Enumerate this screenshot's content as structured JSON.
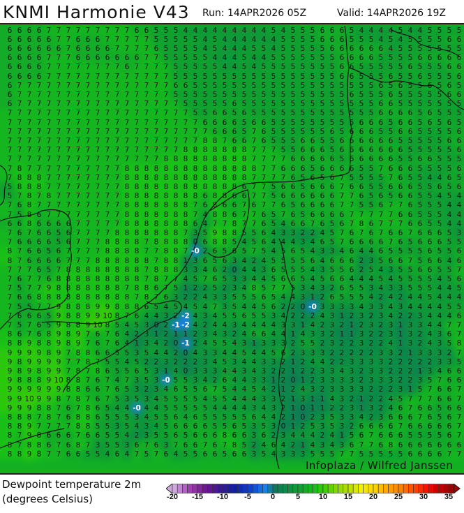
{
  "header": {
    "title": "KNMI Harmonie V43",
    "run": "Run: 14APR2026 05Z",
    "valid": "Valid: 14APR2026 19Z"
  },
  "legend": {
    "parameter": "Dewpoint temperature 2m",
    "units": "(degrees Celsius)",
    "range": [
      -20,
      36
    ],
    "tick_labels": [
      "-20",
      "-15",
      "-10",
      "-5",
      "0",
      "5",
      "10",
      "15",
      "20",
      "25",
      "30",
      "35"
    ],
    "color_stops": [
      [
        -20,
        "#d0a8e0"
      ],
      [
        -17,
        "#a040b0"
      ],
      [
        -14,
        "#701890"
      ],
      [
        -11,
        "#381890"
      ],
      [
        -8,
        "#1020a0"
      ],
      [
        -5,
        "#1040d0"
      ],
      [
        -2,
        "#1880e8"
      ],
      [
        0,
        "#107858"
      ],
      [
        2,
        "#0c8a48"
      ],
      [
        5,
        "#10a030"
      ],
      [
        8,
        "#18c018"
      ],
      [
        10,
        "#40d000"
      ],
      [
        12,
        "#80d800"
      ],
      [
        15,
        "#c0e000"
      ],
      [
        17,
        "#f0f000"
      ],
      [
        20,
        "#ffd000"
      ],
      [
        22,
        "#ffa800"
      ],
      [
        25,
        "#ff8000"
      ],
      [
        28,
        "#ff4000"
      ],
      [
        30,
        "#ff1000"
      ],
      [
        32,
        "#d00000"
      ],
      [
        35,
        "#a00000"
      ]
    ]
  },
  "watermark": "Infoplaza / Wilfred Janssen",
  "grid": {
    "rows": [
      "6 6 6 6 7 7 7 7 7 7 7 7 7 6 6 5 5 5 4 4 4 4 4 4 4 4 4 5 4 5 5 5 6 6 6 5 4 4 4 4 5 4 4 5 5 5 5",
      "6 6 6 6 6 7 7 6 6 6 7 7 7 7 7 5 5 5 5 5 4 5 4 4 4 4 4 4 5 5 5 5 6 6 6 5 5 5 4 5 4 5 5 5 5 6 6",
      "6 6 6 6 6 6 7 6 6 6 6 7 7 7 7 6 5 5 5 5 4 5 4 4 4 5 5 4 5 5 5 5 5 6 6 6 6 6 6 4 5 5 5 5 5 5 5",
      "6 6 6 6 7 7 7 6 6 6 6 6 6 6 7 7 5 5 5 5 5 4 4 4 5 4 4 5 5 5 5 5 5 5 6 6 6 6 5 5 5 5 6 6 6 6 6",
      "6 6 6 6 7 7 7 7 7 7 7 7 6 7 7 7 7 5 5 5 5 5 4 4 5 4 5 5 5 5 5 5 5 5 6 6 5 5 5 5 5 6 5 5 5 6 6",
      "6 6 6 6 7 7 7 7 7 7 7 7 7 7 7 7 7 5 5 5 5 5 5 5 5 5 5 5 5 5 5 5 5 5 6 6 5 5 5 6 5 5 6 5 5 5 6",
      "6 7 7 7 7 7 7 7 7 7 7 7 7 7 7 7 7 6 6 5 5 5 5 5 5 5 5 5 5 5 5 5 5 5 5 5 5 5 6 5 6 5 5 6 5 6 5",
      "6 7 7 7 7 7 7 7 7 7 7 7 7 7 7 7 7 5 5 5 5 5 5 5 5 5 5 5 5 5 5 5 5 5 5 6 5 5 5 6 5 5 5 5 5 6 6",
      "6 7 7 7 7 7 7 7 7 7 7 7 7 7 7 7 7 7 5 5 5 5 5 6 5 5 5 5 5 5 5 5 5 5 5 5 5 5 6 6 5 5 5 5 5 5 5",
      "7 7 7 7 7 7 7 7 7 7 7 7 7 7 7 7 7 7 7 5 5 6 6 5 6 5 5 5 5 5 5 5 5 5 5 5 5 5 6 6 6 6 5 6 5 5 5",
      "7 7 7 7 7 7 7 7 7 7 7 7 7 7 7 7 7 7 7 7 6 6 6 6 5 6 6 5 5 5 5 5 5 5 5 5 6 6 6 5 6 6 5 6 5 6 5",
      "7 7 7 7 7 7 7 7 7 7 7 7 7 7 7 7 7 7 7 7 7 6 6 6 5 7 6 5 5 5 5 5 5 6 5 6 6 6 5 5 6 6 5 5 5 5 6",
      "7 7 7 7 7 7 7 7 7 7 7 7 7 7 7 7 7 7 7 7 8 8 7 6 6 7 6 5 5 5 6 6 5 5 6 6 6 6 6 6 5 5 5 5 5 6 6",
      "7 7 7 7 7 7 7 7 7 7 7 7 7 7 7 7 7 7 8 8 8 8 8 8 8 7 7 7 5 5 6 6 6 5 6 6 6 6 6 6 6 5 5 5 5 5 6",
      "7 7 7 7 7 7 7 7 7 7 7 7 7 7 7 7 8 8 8 8 8 8 8 8 8 7 7 7 7 6 6 6 6 6 5 6 6 6 6 6 5 5 6 6 5 5 5",
      "7 8 7 7 7 7 7 7 7 7 7 7 8 8 8 8 8 8 8 8 8 8 8 8 8 8 7 7 6 6 6 5 6 6 6 6 5 5 7 6 6 6 5 5 5 5 6",
      "7 8 8 8 7 7 7 7 7 7 7 7 8 8 8 8 8 8 8 8 8 8 8 8 8 7 7 7 7 6 5 6 5 6 7 5 5 5 5 7 6 5 5 4 4 6 5",
      "5 8 8 8 7 7 7 7 7 7 7 7 8 8 8 8 8 8 8 8 8 8 8 8 6 7 7 5 6 6 5 6 6 6 7 6 6 5 5 6 6 6 5 5 6 5 6",
      "5 7 8 7 8 7 7 7 7 7 7 7 8 8 8 8 8 8 8 8 6 8 8 6 6 7 7 5 6 6 6 6 6 6 7 7 6 5 6 5 6 6 5 5 4 5 4",
      "7 6 8 7 7 7 7 7 7 7 7 7 8 8 8 8 8 8 8 7 6 8 6 6 7 6 7 7 6 5 6 6 6 6 7 7 5 5 6 7 7 6 5 5 5 4 4",
      "7 5 8 6 7 7 7 7 7 7 7 7 8 8 8 8 8 8 8 7 4 8 8 6 7 7 6 5 7 6 5 6 6 6 6 7 7 7 7 7 6 6 5 5 5 4 4",
      "6 6 8 6 6 6 6 7 7 7 7 7 8 8 8 8 8 8 8 6 4 7 7 8 7 7 6 5 4 6 6 7 6 5 6 7 8 6 7 7 7 6 6 5 5 4 4",
      "7 6 7 6 6 5 6 7 7 7 7 8 8 8 8 8 8 8 7 3 5 9 8 8 5 5 6 4 3 3 2 2 4 5 7 6 7 6 7 6 6 7 6 6 6 5 3",
      "7 6 6 6 6 5 6 7 7 7 8 8 8 8 7 8 8 8 8 0 6 8 8 5 4 5 6 4 4 4 3 4 6 5 7 6 6 6 6 7 6 5 6 6 6 5 5",
      "8 7 6 6 5 6 7 7 7 7 8 8 8 8 7 7 8 8 7 -0 2 6 5 6 5 7 5 4 5 6 5 4 3 3 4 6 4 4 6 5 5 5 5 6 5 5 6",
      "8 7 6 6 6 6 7 7 7 8 8 8 8 8 8 7 8 8 1 3 6 5 6 3 4 2 4 5 5 5 5 6 4 6 6 6 2 3 5 6 6 7 5 6 6 4 6",
      "7 7 7 6 5 7 8 8 8 8 8 8 8 8 7 8 8 8 3 3 4 6 2 0 4 4 3 6 5 5 5 4 3 5 5 6 2 5 4 3 5 5 6 6 5 5 7",
      "7 6 7 7 6 8 8 8 8 8 8 8 8 8 7 8 7 7 4 5 7 6 5 3 3 4 4 5 6 6 5 4 5 6 6 4 4 4 5 4 5 5 5 5 4 5 6",
      "7 5 7 7 9 8 8 8 8 8 8 8 7 8 8 6 7 5 1 2 2 5 2 3 4 8 5 7 7 5 3 4 3 2 6 5 5 3 4 3 3 5 5 5 4 4 5",
      "7 6 6 8 8 8 8 8 8 8 8 8 8 7 8 7 6 3 2 2 4 3 3 5 5 5 6 5 4 4 3 1 2 6 5 5 5 4 2 4 2 4 4 5 4 4 4",
      "7 5 5 7 7 9 8 8 8 9 9 8 8 8 6 5 4 5 4 5 4 7 3 5 4 4 5 6 2 2 0 -0 3 3 3 3 4 3 3 4 3 4 4 4 4 5 5",
      "7 6 6 6 5 9 8 8 9 9 10 8 7 6 4 4 3 2 -2 4 3 4 5 5 6 5 5 3 4 2 2 2 4 3 1 2 3 2 3 4 2 2 3 4 4 4 6",
      "7 5 7 6 5 9 8 8 9 10 8 5 4 5 3 0 2 -1 -2 4 2 4 4 3 4 4 4 4 3 3 1 4 2 3 2 1 2 3 2 3 1 3 3 4 4 7 7",
      "8 6 7 6 8 9 8 9 7 6 7 6 4 2 3 1 2 1 1 2 3 4 3 2 4 6 6 4 4 1 4 3 3 2 1 1 3 2 2 3 1 3 2 4 3 6 7",
      "8 8 9 8 8 9 8 9 7 6 7 6 4 1 3 4 2 0 -1 2 4 5 5 4 3 1 3 3 3 2 5 5 2 3 2 2 3 2 2 4 1 3 2 4 3 5 8",
      "9 9 9 9 8 9 7 8 8 6 6 5 5 3 5 4 4 2 0 4 3 3 4 4 5 4 4 5 6 2 3 3 3 2 2 2 2 2 3 3 2 1 3 3 3 2 7",
      "9 8 9 9 9 9 7 7 8 7 5 5 4 5 2 2 3 2 2 2 3 4 5 3 4 4 3 3 2 1 2 4 4 2 2 3 3 3 3 2 2 2 2 2 3 3 5",
      "9 8 9 8 9 9 7 8 7 8 6 5 5 6 5 3 1 4 0 3 3 3 4 4 3 4 3 2 2 1 2 2 3 3 4 3 2 3 3 2 2 2 1 3 4 6 6",
      "9 8 8 8 9 10 8 8 7 6 7 4 7 3 5 3 -0 5 5 3 4 2 6 4 4 3 3 1 2 0 1 2 3 3 3 3 2 3 3 3 2 2 3 5 7 6 6",
      "9 9 9 9 9 9 8 8 6 6 7 6 5 3 2 3 4 6 5 5 6 7 5 4 4 5 4 2 1 2 4 3 2 3 3 3 3 2 2 2 3 1 5 7 6 6 7",
      "9 9 10 9 9 8 7 8 7 6 7 5 3 5 3 4 5 5 5 5 4 5 5 4 4 4 3 3 2 1 3 1 1 4 3 2 1 2 2 4 5 7 7 7 6 6 7",
      "9 9 9 8 8 7 6 7 8 6 5 4 4 -0 4 4 5 5 5 5 5 4 4 4 4 3 4 3 2 1 0 1 1 2 2 3 1 3 2 4 6 7 6 6 5 6 6",
      "8 8 8 7 8 7 6 8 8 6 5 5 5 3 4 5 5 6 4 6 5 5 5 5 5 6 4 4 2 1 0 2 3 5 3 3 4 2 3 6 6 6 7 6 5 6 7",
      "8 8 9 7 7 7 7 8 8 5 5 3 5 4 3 4 5 6 6 6 6 5 5 6 5 3 5 3 0 1 2 5 3 5 3 2 6 6 6 6 7 6 6 6 6 6 7",
      "8 7 9 8 6 6 6 7 6 6 5 5 4 2 3 5 5 6 5 6 6 6 8 6 6 3 6 2 3 4 4 4 2 4 1 5 6 7 6 6 6 5 5 5 5 6 7",
      "8 7 8 8 6 7 6 8 7 3 5 5 3 6 7 6 3 7 6 6 7 6 7 8 5 2 4 6 4 2 1 4 3 4 3 6 7 7 6 8 6 6 6 6 6 6 6",
      "8 8 9 8 7 7 6 6 5 5 4 6 4 7 5 7 6 4 5 5 6 6 5 6 6 3 5 4 3 3 3 5 5 5 7 7 5 5 5 5 5 6 6 6 6 7 7"
    ]
  }
}
